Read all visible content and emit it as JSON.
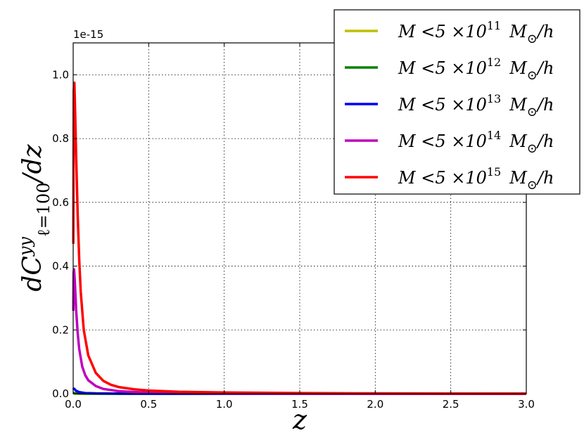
{
  "chart_data": {
    "type": "line",
    "offset_text": "1e-15",
    "xlabel": "z",
    "ylabel": {
      "main": "dC",
      "sup": "yy",
      "sub": "ℓ=100",
      "tail": "/dz"
    },
    "xlim": [
      0.0,
      3.0
    ],
    "ylim": [
      0.0,
      1.1
    ],
    "x_ticks": [
      "0.0",
      "0.5",
      "1.0",
      "1.5",
      "2.0",
      "2.5",
      "3.0"
    ],
    "y_ticks": [
      "0.0",
      "0.2",
      "0.4",
      "0.6",
      "0.8",
      "1.0"
    ],
    "grid": true,
    "legend_position": "upper-right",
    "series": [
      {
        "legend": {
          "prefix": "M <5 ×10",
          "exp": "11",
          "suffix_main": "M",
          "suffix_sub": "⊙",
          "suffix_tail": "/h"
        },
        "color": "#bfbf00",
        "x": [
          0.002,
          0.005,
          0.01,
          0.02,
          0.05,
          0.1,
          0.2,
          0.5,
          1.0,
          2.0,
          3.0
        ],
        "y": [
          0.0002,
          0.0003,
          0.0003,
          0.0002,
          0.0001,
          0.0001,
          0.0,
          0.0,
          0.0,
          0.0,
          0.0
        ]
      },
      {
        "legend": {
          "prefix": "M <5 ×10",
          "exp": "12",
          "suffix_main": "M",
          "suffix_sub": "⊙",
          "suffix_tail": "/h"
        },
        "color": "#008000",
        "x": [
          0.002,
          0.005,
          0.01,
          0.02,
          0.05,
          0.1,
          0.2,
          0.5,
          1.0,
          2.0,
          3.0
        ],
        "y": [
          0.0015,
          0.002,
          0.0018,
          0.0012,
          0.0006,
          0.0003,
          0.0001,
          0.0,
          0.0,
          0.0,
          0.0
        ]
      },
      {
        "legend": {
          "prefix": "M <5 ×10",
          "exp": "13",
          "suffix_main": "M",
          "suffix_sub": "⊙",
          "suffix_tail": "/h"
        },
        "color": "#0000ff",
        "x": [
          0.002,
          0.005,
          0.01,
          0.02,
          0.04,
          0.08,
          0.15,
          0.3,
          0.6,
          1.0,
          2.0,
          3.0
        ],
        "y": [
          0.012,
          0.016,
          0.014,
          0.009,
          0.005,
          0.002,
          0.001,
          0.0004,
          0.0001,
          0.0,
          0.0,
          0.0
        ]
      },
      {
        "legend": {
          "prefix": "M <5 ×10",
          "exp": "14",
          "suffix_main": "M",
          "suffix_sub": "⊙",
          "suffix_tail": "/h"
        },
        "color": "#bf00bf",
        "x": [
          0.001,
          0.003,
          0.006,
          0.01,
          0.015,
          0.02,
          0.03,
          0.04,
          0.06,
          0.08,
          0.1,
          0.15,
          0.2,
          0.3,
          0.5,
          1.0,
          1.5,
          2.0,
          3.0
        ],
        "y": [
          0.26,
          0.38,
          0.39,
          0.36,
          0.31,
          0.26,
          0.19,
          0.14,
          0.085,
          0.058,
          0.042,
          0.024,
          0.015,
          0.008,
          0.003,
          0.0008,
          0.0003,
          0.0001,
          0.0
        ]
      },
      {
        "legend": {
          "prefix": "M <5 ×10",
          "exp": "15",
          "suffix_main": "M",
          "suffix_sub": "⊙",
          "suffix_tail": "/h"
        },
        "color": "#ff0000",
        "x": [
          0.001,
          0.004,
          0.008,
          0.012,
          0.02,
          0.03,
          0.04,
          0.05,
          0.07,
          0.1,
          0.15,
          0.2,
          0.25,
          0.3,
          0.4,
          0.5,
          0.7,
          1.0,
          1.5,
          2.0,
          2.5,
          3.0
        ],
        "y": [
          0.47,
          0.95,
          0.975,
          0.9,
          0.74,
          0.56,
          0.42,
          0.32,
          0.2,
          0.12,
          0.065,
          0.04,
          0.028,
          0.021,
          0.014,
          0.01,
          0.006,
          0.004,
          0.002,
          0.001,
          0.0005,
          0.0002
        ]
      }
    ]
  }
}
